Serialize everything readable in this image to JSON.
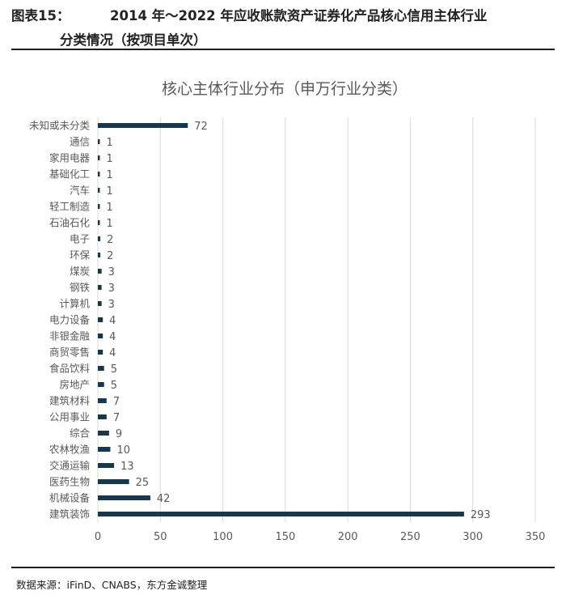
{
  "figure": {
    "number": "图表15：",
    "title_line1": "2014 年～2022 年应收账款资产证券化产品核心信用主体行业",
    "title_line2": "分类情况（按项目单次）"
  },
  "source": "数据来源：iFinD、CNABS，东方金诚整理",
  "colors": {
    "bar": "#17384a",
    "grid": "#d9d9d9",
    "axis_text": "#595959",
    "title_text": "#595959"
  },
  "chart_data": {
    "type": "bar",
    "orientation": "horizontal",
    "title": "核心主体行业分布（申万行业分类）",
    "xlim": [
      0,
      350
    ],
    "xticks": [
      0,
      50,
      100,
      150,
      200,
      250,
      300,
      350
    ],
    "grid": "vertical",
    "legend": "none",
    "categories": [
      "未知或未分类",
      "通信",
      "家用电器",
      "基础化工",
      "汽车",
      "轻工制造",
      "石油石化",
      "电子",
      "环保",
      "煤炭",
      "钢铁",
      "计算机",
      "电力设备",
      "非银金融",
      "商贸零售",
      "食品饮料",
      "房地产",
      "建筑材料",
      "公用事业",
      "综合",
      "农林牧渔",
      "交通运输",
      "医药生物",
      "机械设备",
      "建筑装饰"
    ],
    "values": [
      72,
      1,
      1,
      1,
      1,
      1,
      1,
      2,
      2,
      3,
      3,
      3,
      4,
      4,
      4,
      5,
      5,
      7,
      7,
      9,
      10,
      13,
      25,
      42,
      293
    ]
  }
}
